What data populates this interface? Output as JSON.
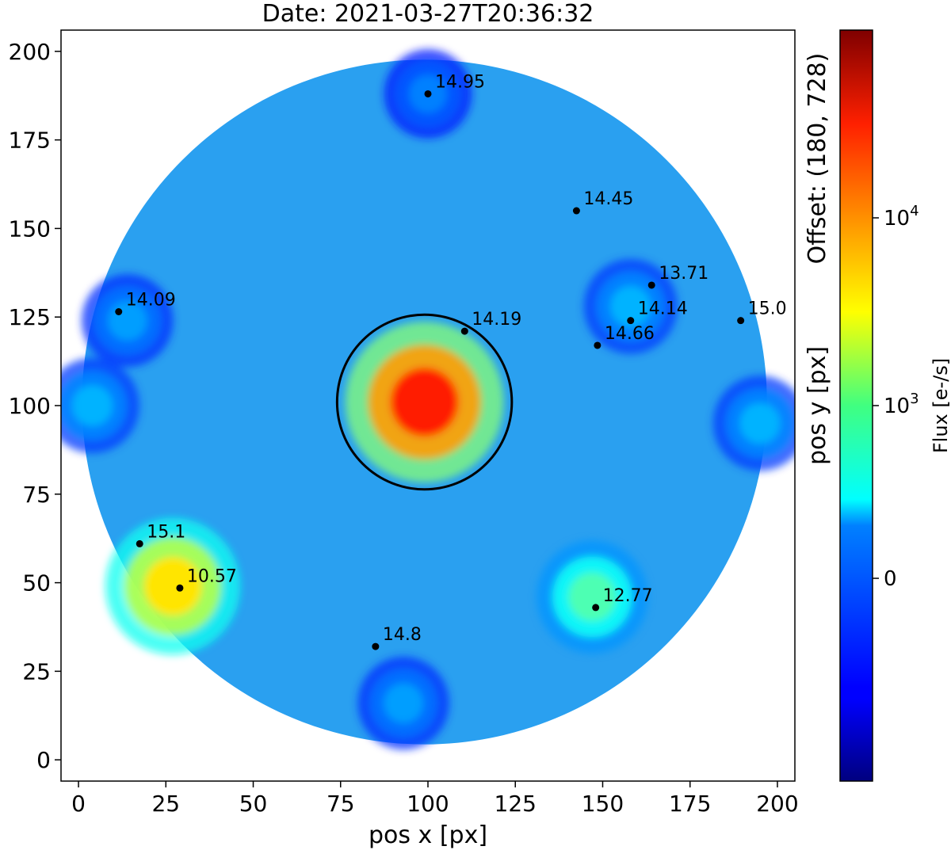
{
  "chart_data": {
    "type": "heatmap",
    "title": "Date: 2021-03-27T20:36:32",
    "xlabel": "pos x [px]",
    "ylabel": "pos y [px]",
    "side_label": "Offset: (180, 728)",
    "xlim": [
      -5,
      205
    ],
    "ylim": [
      -6,
      206
    ],
    "x_ticks": [
      0,
      25,
      50,
      75,
      100,
      125,
      150,
      175,
      200
    ],
    "y_ticks": [
      0,
      25,
      50,
      75,
      100,
      125,
      150,
      175,
      200
    ],
    "grid": false,
    "colormap": "jet",
    "colorbar": {
      "label": "Flux [e-/s]",
      "ticks": [
        {
          "base": "10",
          "exp": "4",
          "frac": 0.75
        },
        {
          "base": "10",
          "exp": "3",
          "frac": 0.5
        },
        {
          "base": "0",
          "exp": "",
          "frac": 0.27
        }
      ]
    },
    "field_of_view": {
      "center": [
        99,
        101
      ],
      "radius": 98
    },
    "aperture_circle": {
      "center": [
        99,
        101
      ],
      "radius": 25
    },
    "bright_regions": [
      {
        "name": "central-source",
        "center": [
          99,
          101
        ],
        "level": 0.85
      },
      {
        "name": "lower-left-source",
        "center": [
          27,
          49
        ],
        "level": 0.65
      },
      {
        "name": "lower-right-source",
        "center": [
          147,
          46
        ],
        "level": 0.45
      },
      {
        "name": "upper-right-ghost",
        "center": [
          158,
          128
        ],
        "level": 0.3
      },
      {
        "name": "upper-left-ghost",
        "center": [
          14,
          124
        ],
        "level": 0.28
      },
      {
        "name": "bottom-ghost",
        "center": [
          93,
          16
        ],
        "level": 0.28
      },
      {
        "name": "top-ghost",
        "center": [
          100,
          188
        ],
        "level": 0.25
      },
      {
        "name": "right-edge-ghost",
        "center": [
          195,
          95
        ],
        "level": 0.3
      },
      {
        "name": "left-edge-ghost",
        "center": [
          4,
          100
        ],
        "level": 0.3
      }
    ],
    "stars": [
      {
        "x": 100,
        "y": 188,
        "label": "14.95"
      },
      {
        "x": 142.5,
        "y": 155,
        "label": "14.45"
      },
      {
        "x": 164,
        "y": 134,
        "label": "13.71"
      },
      {
        "x": 158,
        "y": 124,
        "label": "14.14"
      },
      {
        "x": 148.5,
        "y": 117,
        "label": "14.66"
      },
      {
        "x": 189.5,
        "y": 124,
        "label": "15.0"
      },
      {
        "x": 110.5,
        "y": 121,
        "label": "14.19"
      },
      {
        "x": 11.5,
        "y": 126.5,
        "label": "14.09"
      },
      {
        "x": 17.5,
        "y": 61,
        "label": "15.1"
      },
      {
        "x": 29,
        "y": 48.5,
        "label": "10.57"
      },
      {
        "x": 148,
        "y": 43,
        "label": "12.77"
      },
      {
        "x": 85,
        "y": 32,
        "label": "14.8"
      }
    ]
  }
}
